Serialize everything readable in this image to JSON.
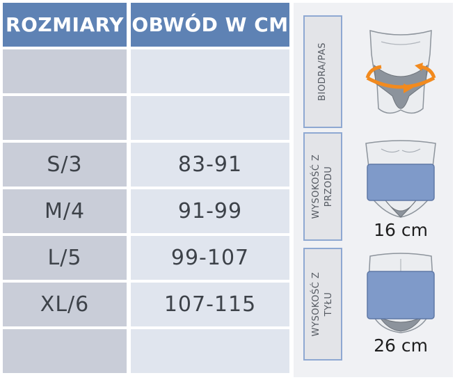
{
  "table": {
    "headers": [
      "ROZMIARY",
      "OBWÓD W CM"
    ],
    "rows": [
      [
        "",
        ""
      ],
      [
        "",
        ""
      ],
      [
        "S/3",
        "83-91"
      ],
      [
        "M/4",
        "91-99"
      ],
      [
        "L/5",
        "99-107"
      ],
      [
        "XL/6",
        "107-115"
      ],
      [
        "",
        ""
      ]
    ]
  },
  "panel": {
    "hip_label": "BIODRA/PAS",
    "front_label_line1": "WYSOKOŚĆ Z",
    "front_label_line2": "PRZODU",
    "front_height": "16 cm",
    "back_label_line1": "WYSOKOŚĆ Z",
    "back_label_line2": "TYŁU",
    "back_height": "26 cm"
  },
  "colors": {
    "header": "#5e82b4",
    "size_cell": "#c9cdd8",
    "range_cell": "#e0e5ee",
    "belt": "#7f9ac9",
    "arrow": "#f28a1e"
  }
}
